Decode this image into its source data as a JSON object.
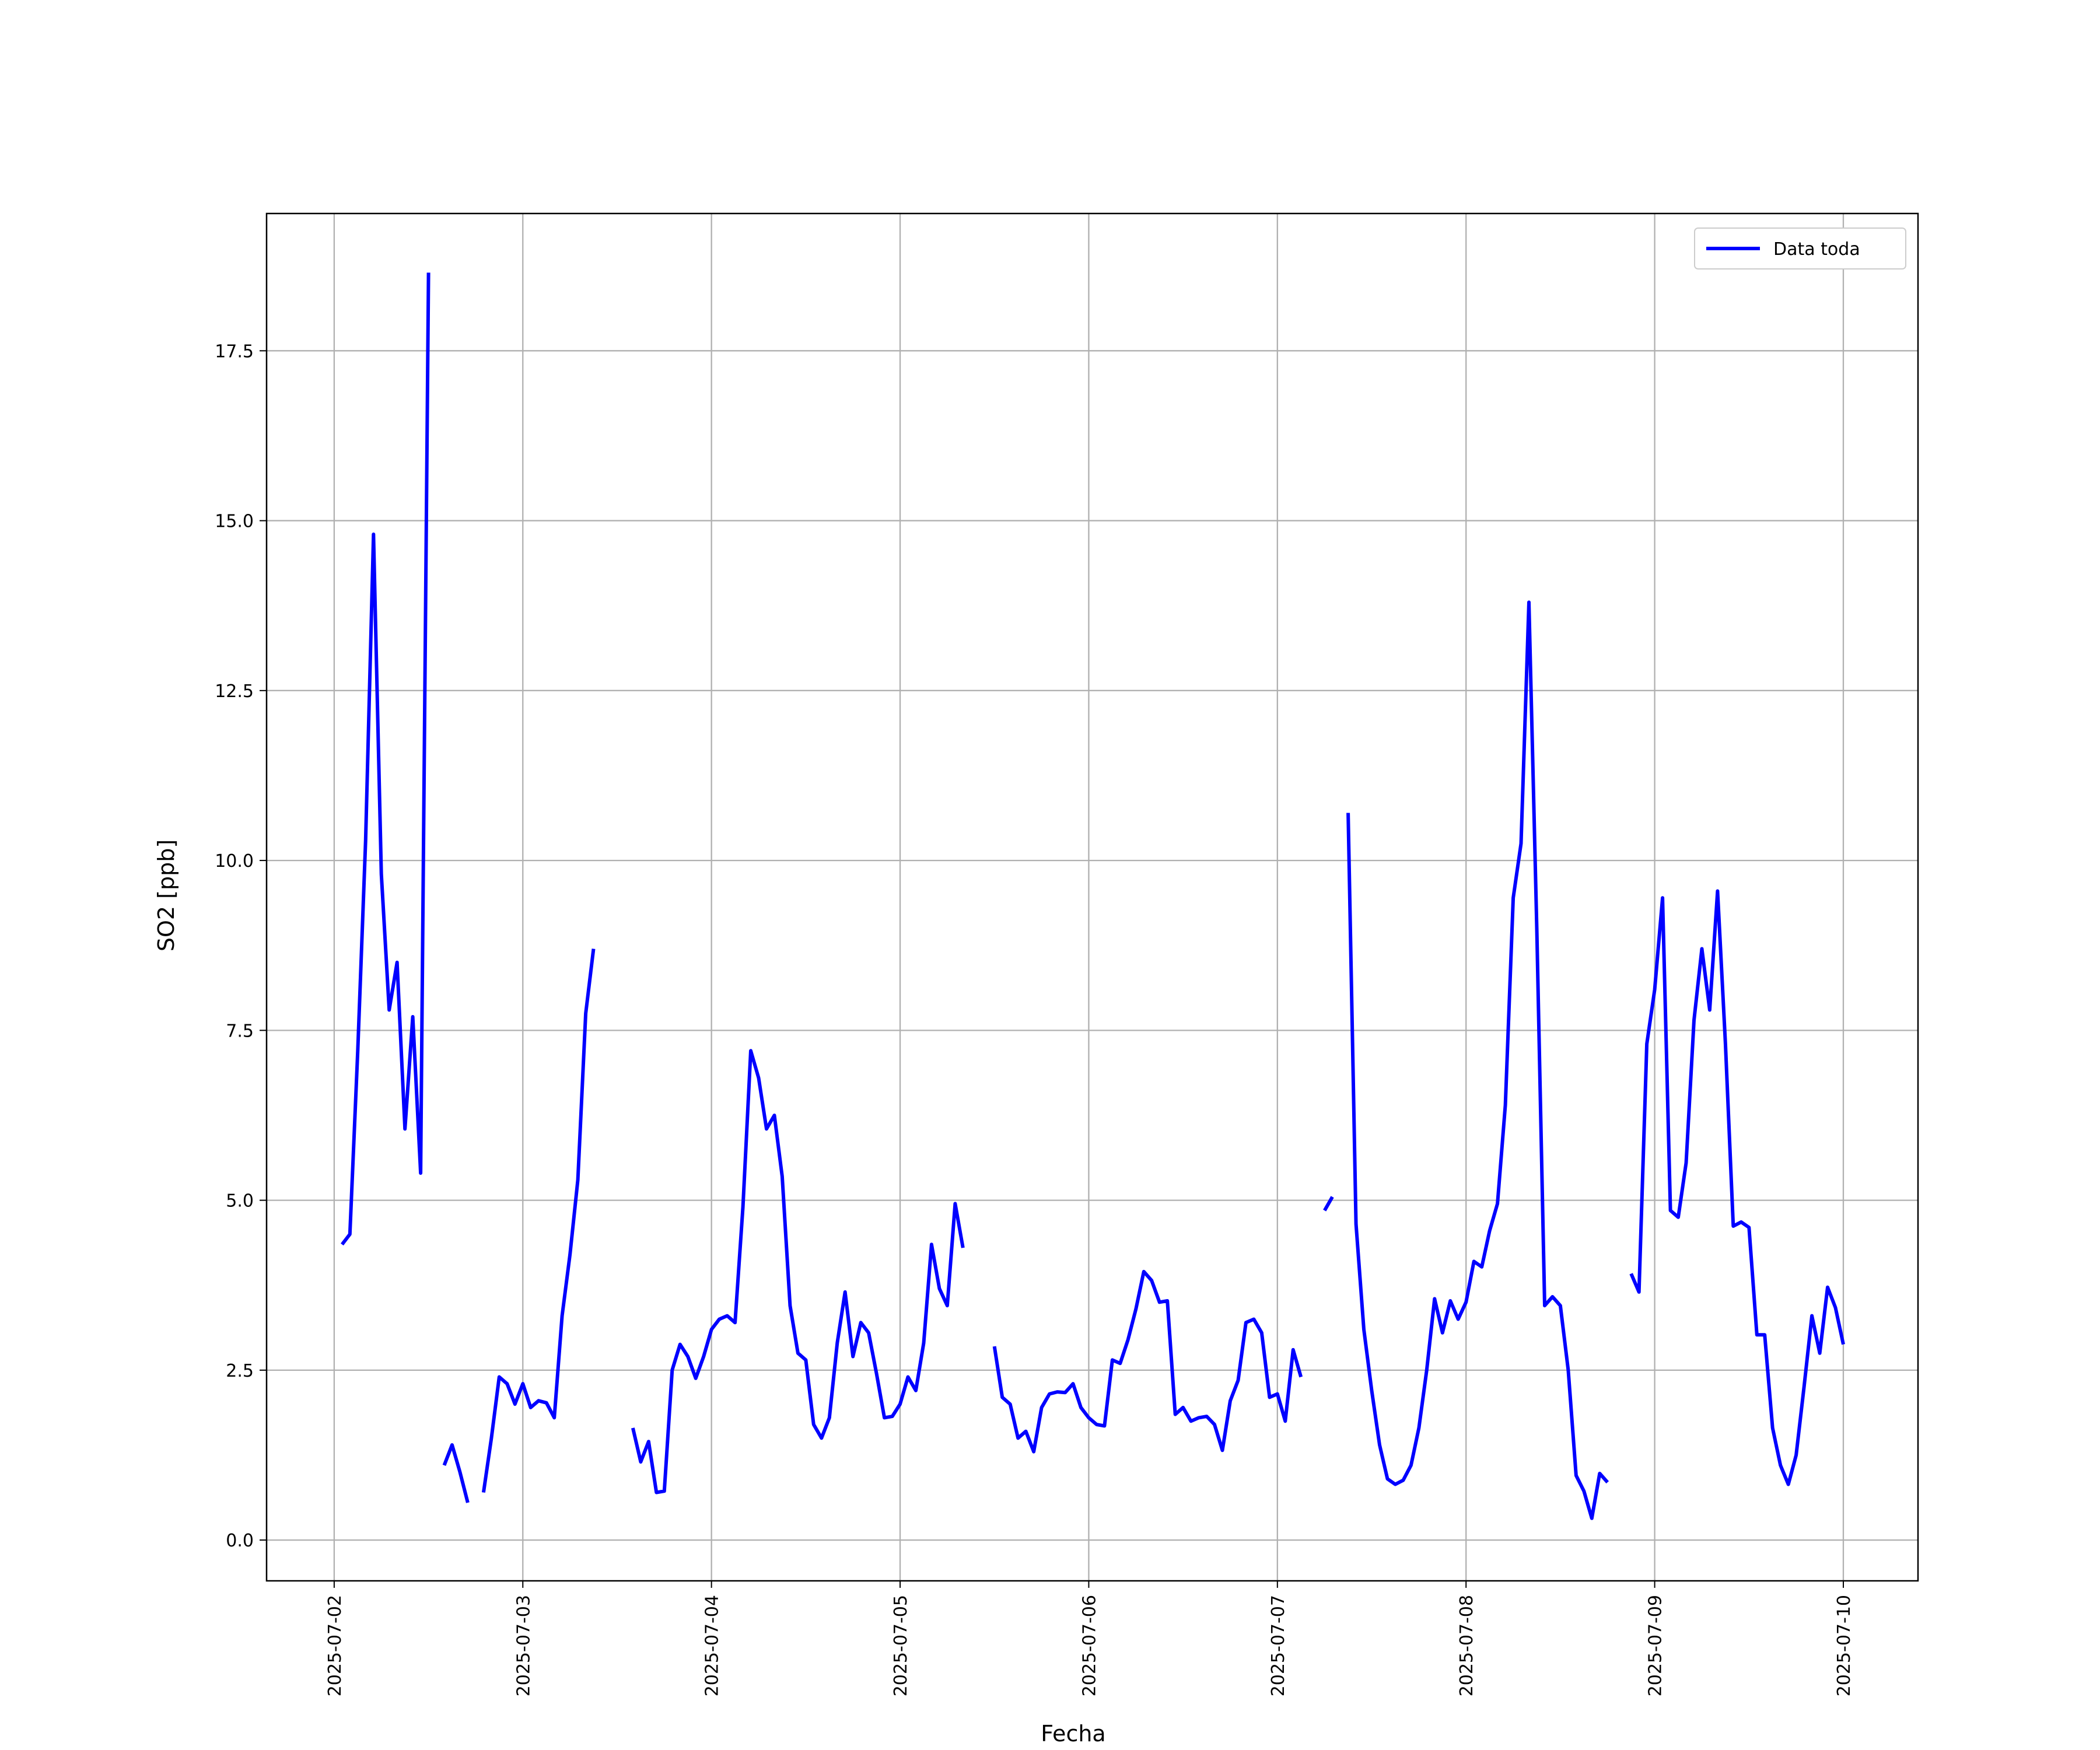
{
  "chart_data": {
    "type": "line",
    "x_label": "Fecha",
    "y_label": "SO2 [ppb]",
    "x": [
      "2025-07-02 01:00",
      "2025-07-02 02:00",
      "2025-07-02 03:00",
      "2025-07-02 04:00",
      "2025-07-02 05:00",
      "2025-07-02 06:00",
      "2025-07-02 07:00",
      "2025-07-02 08:00",
      "2025-07-02 09:00",
      "2025-07-02 10:00",
      "2025-07-02 11:00",
      "2025-07-02 12:00",
      "2025-07-02 13:00",
      "2025-07-02 14:00",
      "2025-07-02 15:00",
      "2025-07-02 16:00",
      "2025-07-02 17:00",
      "2025-07-02 18:00",
      "2025-07-02 19:00",
      "2025-07-02 20:00",
      "2025-07-02 21:00",
      "2025-07-02 22:00",
      "2025-07-02 23:00",
      "2025-07-03 00:00",
      "2025-07-03 01:00",
      "2025-07-03 02:00",
      "2025-07-03 03:00",
      "2025-07-03 04:00",
      "2025-07-03 05:00",
      "2025-07-03 06:00",
      "2025-07-03 07:00",
      "2025-07-03 08:00",
      "2025-07-03 09:00",
      "2025-07-03 10:00",
      "2025-07-03 11:00",
      "2025-07-03 12:00",
      "2025-07-03 13:00",
      "2025-07-03 14:00",
      "2025-07-03 15:00",
      "2025-07-03 16:00",
      "2025-07-03 17:00",
      "2025-07-03 18:00",
      "2025-07-03 19:00",
      "2025-07-03 20:00",
      "2025-07-03 21:00",
      "2025-07-03 22:00",
      "2025-07-03 23:00",
      "2025-07-04 00:00",
      "2025-07-04 01:00",
      "2025-07-04 02:00",
      "2025-07-04 03:00",
      "2025-07-04 04:00",
      "2025-07-04 05:00",
      "2025-07-04 06:00",
      "2025-07-04 07:00",
      "2025-07-04 08:00",
      "2025-07-04 09:00",
      "2025-07-04 10:00",
      "2025-07-04 11:00",
      "2025-07-04 12:00",
      "2025-07-04 13:00",
      "2025-07-04 14:00",
      "2025-07-04 15:00",
      "2025-07-04 16:00",
      "2025-07-04 17:00",
      "2025-07-04 18:00",
      "2025-07-04 19:00",
      "2025-07-04 20:00",
      "2025-07-04 21:00",
      "2025-07-04 22:00",
      "2025-07-04 23:00",
      "2025-07-05 00:00",
      "2025-07-05 01:00",
      "2025-07-05 02:00",
      "2025-07-05 03:00",
      "2025-07-05 04:00",
      "2025-07-05 05:00",
      "2025-07-05 06:00",
      "2025-07-05 07:00",
      "2025-07-05 08:00",
      "2025-07-05 09:00",
      "2025-07-05 10:00",
      "2025-07-05 11:00",
      "2025-07-05 12:00",
      "2025-07-05 13:00",
      "2025-07-05 14:00",
      "2025-07-05 15:00",
      "2025-07-05 16:00",
      "2025-07-05 17:00",
      "2025-07-05 18:00",
      "2025-07-05 19:00",
      "2025-07-05 20:00",
      "2025-07-05 21:00",
      "2025-07-05 22:00",
      "2025-07-05 23:00",
      "2025-07-06 00:00",
      "2025-07-06 01:00",
      "2025-07-06 02:00",
      "2025-07-06 03:00",
      "2025-07-06 04:00",
      "2025-07-06 05:00",
      "2025-07-06 06:00",
      "2025-07-06 07:00",
      "2025-07-06 08:00",
      "2025-07-06 09:00",
      "2025-07-06 10:00",
      "2025-07-06 11:00",
      "2025-07-06 12:00",
      "2025-07-06 13:00",
      "2025-07-06 14:00",
      "2025-07-06 15:00",
      "2025-07-06 16:00",
      "2025-07-06 17:00",
      "2025-07-06 18:00",
      "2025-07-06 19:00",
      "2025-07-06 20:00",
      "2025-07-06 21:00",
      "2025-07-06 22:00",
      "2025-07-06 23:00",
      "2025-07-07 00:00",
      "2025-07-07 01:00",
      "2025-07-07 02:00",
      "2025-07-07 03:00",
      "2025-07-07 04:00",
      "2025-07-07 05:00",
      "2025-07-07 06:00",
      "2025-07-07 07:00",
      "2025-07-07 08:00",
      "2025-07-07 09:00",
      "2025-07-07 10:00",
      "2025-07-07 11:00",
      "2025-07-07 12:00",
      "2025-07-07 13:00",
      "2025-07-07 14:00",
      "2025-07-07 15:00",
      "2025-07-07 16:00",
      "2025-07-07 17:00",
      "2025-07-07 18:00",
      "2025-07-07 19:00",
      "2025-07-07 20:00",
      "2025-07-07 21:00",
      "2025-07-07 22:00",
      "2025-07-07 23:00",
      "2025-07-08 00:00",
      "2025-07-08 01:00",
      "2025-07-08 02:00",
      "2025-07-08 03:00",
      "2025-07-08 04:00",
      "2025-07-08 05:00",
      "2025-07-08 06:00",
      "2025-07-08 07:00",
      "2025-07-08 08:00",
      "2025-07-08 09:00",
      "2025-07-08 10:00",
      "2025-07-08 11:00",
      "2025-07-08 12:00",
      "2025-07-08 13:00",
      "2025-07-08 14:00",
      "2025-07-08 15:00",
      "2025-07-08 16:00",
      "2025-07-08 17:00",
      "2025-07-08 18:00",
      "2025-07-08 19:00",
      "2025-07-08 20:00",
      "2025-07-08 21:00",
      "2025-07-08 22:00",
      "2025-07-08 23:00",
      "2025-07-09 00:00",
      "2025-07-09 01:00",
      "2025-07-09 02:00",
      "2025-07-09 03:00",
      "2025-07-09 04:00",
      "2025-07-09 05:00",
      "2025-07-09 06:00",
      "2025-07-09 07:00",
      "2025-07-09 08:00",
      "2025-07-09 09:00",
      "2025-07-09 10:00",
      "2025-07-09 11:00",
      "2025-07-09 12:00",
      "2025-07-09 13:00",
      "2025-07-09 14:00",
      "2025-07-09 15:00",
      "2025-07-09 16:00",
      "2025-07-09 17:00",
      "2025-07-09 18:00",
      "2025-07-09 19:00",
      "2025-07-09 20:00",
      "2025-07-09 21:00",
      "2025-07-09 22:00",
      "2025-07-09 23:00",
      "2025-07-10 00:00"
    ],
    "series": [
      {
        "name": "Data toda",
        "color": "#0000ff",
        "values": [
          4.35,
          4.5,
          7.2,
          10.3,
          14.8,
          9.8,
          7.8,
          8.5,
          6.05,
          7.7,
          5.4,
          18.65,
          null,
          1.1,
          1.4,
          1.0,
          0.55,
          null,
          0.7,
          1.5,
          2.4,
          2.3,
          2.0,
          2.3,
          1.95,
          2.05,
          2.02,
          1.8,
          3.3,
          4.2,
          5.3,
          7.75,
          8.7,
          null,
          null,
          null,
          null,
          1.65,
          1.15,
          1.45,
          0.7,
          0.72,
          2.5,
          2.88,
          2.7,
          2.38,
          2.7,
          3.1,
          3.25,
          3.3,
          3.2,
          4.9,
          7.2,
          6.8,
          6.05,
          6.25,
          5.35,
          3.45,
          2.75,
          2.65,
          1.7,
          1.5,
          1.8,
          2.9,
          3.65,
          2.7,
          3.2,
          3.05,
          2.45,
          1.8,
          1.82,
          2.0,
          2.4,
          2.2,
          2.9,
          4.35,
          3.7,
          3.45,
          4.95,
          4.3,
          null,
          null,
          null,
          2.85,
          2.1,
          2.0,
          1.5,
          1.6,
          1.3,
          1.95,
          2.15,
          2.18,
          2.17,
          2.3,
          1.95,
          1.8,
          1.7,
          1.68,
          2.65,
          2.6,
          2.95,
          3.4,
          3.95,
          3.82,
          3.5,
          3.52,
          1.85,
          1.95,
          1.75,
          1.8,
          1.82,
          1.7,
          1.32,
          2.05,
          2.35,
          3.2,
          3.25,
          3.05,
          2.1,
          2.15,
          1.75,
          2.8,
          2.4,
          null,
          null,
          4.85,
          5.05,
          null,
          10.7,
          4.65,
          3.1,
          2.2,
          1.4,
          0.9,
          0.82,
          0.88,
          1.1,
          1.65,
          2.5,
          3.55,
          3.05,
          3.52,
          3.25,
          3.5,
          4.1,
          4.02,
          4.55,
          4.95,
          6.4,
          9.45,
          10.25,
          13.8,
          9.0,
          3.45,
          3.58,
          3.45,
          2.5,
          0.95,
          0.72,
          0.32,
          0.98,
          0.85,
          null,
          null,
          3.92,
          3.65,
          7.3,
          8.1,
          9.45,
          4.85,
          4.75,
          5.55,
          7.65,
          8.7,
          7.8,
          9.55,
          7.3,
          4.62,
          4.68,
          4.6,
          3.02,
          3.02,
          1.65,
          1.1,
          0.82,
          1.25,
          2.25,
          3.3,
          2.75,
          3.72,
          3.42,
          2.88
        ]
      }
    ],
    "xlim": [
      "2025-07-01 15:24",
      "2025-07-10 09:30"
    ],
    "xticks": [
      "2025-07-02",
      "2025-07-03",
      "2025-07-04",
      "2025-07-05",
      "2025-07-06",
      "2025-07-07",
      "2025-07-08",
      "2025-07-09",
      "2025-07-10"
    ],
    "ylim": [
      -0.6,
      19.52
    ],
    "yticks": [
      {
        "value": 0,
        "label": "0.0"
      },
      2.5,
      {
        "value": 5,
        "label": "5.0"
      },
      7.5,
      {
        "value": 10,
        "label": "10.0"
      },
      12.5,
      {
        "value": 15,
        "label": "15.0"
      },
      17.5
    ],
    "grid": true,
    "legend": "upper right"
  }
}
